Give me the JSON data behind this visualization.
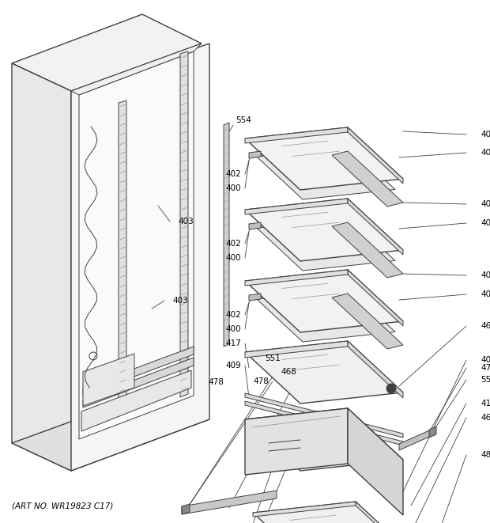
{
  "title": "",
  "footer": "(ART NO. WR19823 C17)",
  "bg_color": "#ffffff",
  "line_color": "#404040",
  "label_color": "#000000",
  "figsize": [
    6.2,
    6.61
  ],
  "dpi": 100
}
